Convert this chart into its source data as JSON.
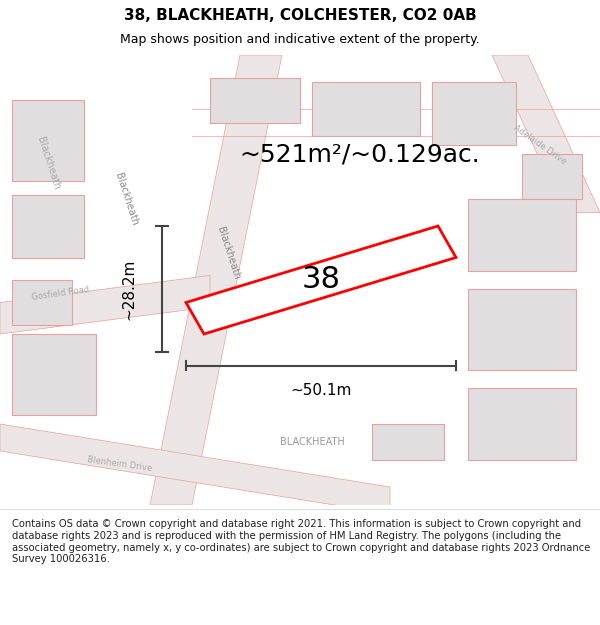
{
  "title": "38, BLACKHEATH, COLCHESTER, CO2 0AB",
  "subtitle": "Map shows position and indicative extent of the property.",
  "footer": "Contains OS data © Crown copyright and database right 2021. This information is subject to Crown copyright and database rights 2023 and is reproduced with the permission of HM Land Registry. The polygons (including the associated geometry, namely x, y co-ordinates) are subject to Crown copyright and database rights 2023 Ordnance Survey 100026316.",
  "area_text": "~521m²/~0.129ac.",
  "width_label": "~50.1m",
  "height_label": "~28.2m",
  "property_number": "38",
  "map_bg": "#f5f5f5",
  "plot_border": "#cccccc",
  "road_stroke": "#e8a0a0",
  "dim_color": "#444444",
  "text_color": "#000000",
  "title_fontsize": 11,
  "subtitle_fontsize": 9,
  "footer_fontsize": 7.2,
  "area_fontsize": 18,
  "number_fontsize": 22,
  "dim_label_fontsize": 11
}
